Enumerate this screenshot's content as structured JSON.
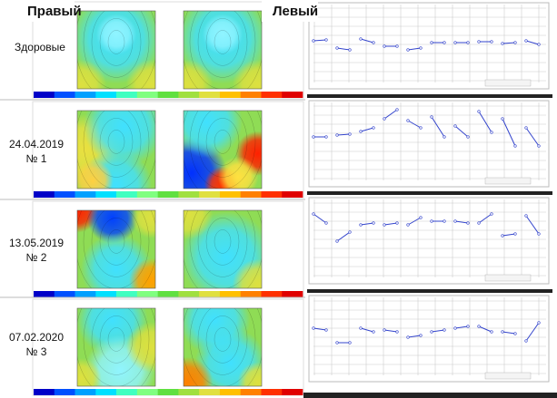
{
  "header": {
    "right": "Правый",
    "left": "Левый"
  },
  "rows": [
    {
      "label": "Здоровые"
    },
    {
      "date": "24.04.2019",
      "number": "№ 1"
    },
    {
      "date": "13.05.2019",
      "number": "№ 2"
    },
    {
      "date": "07.02.2020",
      "number": "№ 3"
    }
  ]
}
